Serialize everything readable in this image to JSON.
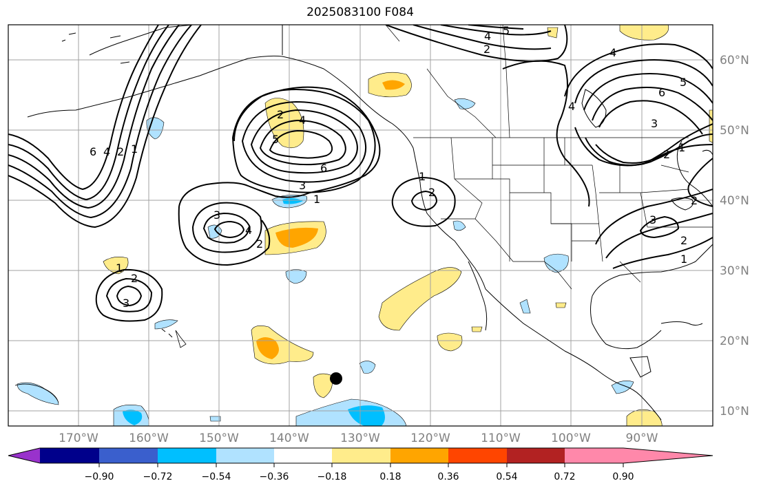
{
  "title": "2025083100 F084",
  "map": {
    "lat_labels": [
      "60°N",
      "50°N",
      "40°N",
      "30°N",
      "20°N",
      "10°N"
    ],
    "lon_labels": [
      "170°W",
      "160°W",
      "150°W",
      "140°W",
      "130°W",
      "120°W",
      "110°W",
      "100°W",
      "90°W"
    ]
  },
  "colorbar": {
    "tick_labels": [
      "−0.90",
      "−0.72",
      "−0.54",
      "−0.36",
      "−0.18",
      "0.18",
      "0.36",
      "0.54",
      "0.72",
      "0.90"
    ],
    "colors": [
      "#9932cc",
      "#00008b",
      "#3a5fcd",
      "#00bfff",
      "#b0e2ff",
      "#ffffff",
      "#ffec8b",
      "#ffa500",
      "#ff4500",
      "#b22222",
      "#ff88aa"
    ]
  },
  "contour_labels": [
    "6",
    "4",
    "2",
    "1",
    "5",
    "4",
    "2",
    "5",
    "4",
    "2",
    "4",
    "6",
    "3",
    "2",
    "1",
    "2",
    "4",
    "5",
    "6",
    "3",
    "1",
    "1",
    "2",
    "3",
    "4",
    "2",
    "1",
    "2",
    "3",
    "3",
    "2",
    "1"
  ],
  "marker": {
    "type": "dot",
    "color": "#000000"
  }
}
